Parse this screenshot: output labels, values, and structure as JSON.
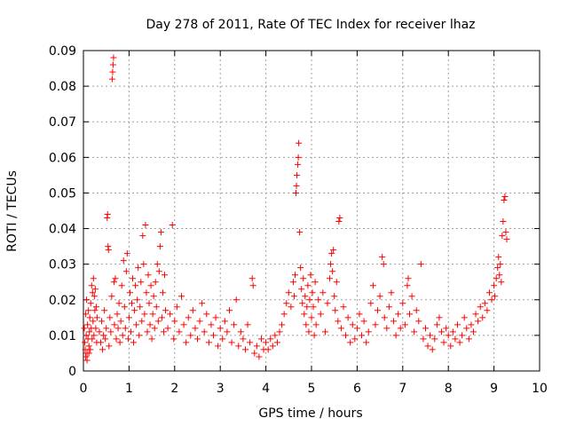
{
  "chart_data": {
    "type": "scatter",
    "title": "Day 278 of 2011, Rate Of TEC Index for receiver lhaz",
    "xlabel": "GPS time / hours",
    "ylabel": "ROTI / TECUs",
    "xlim": [
      0,
      10
    ],
    "ylim": [
      0,
      0.09
    ],
    "xticks": [
      "0",
      "1",
      "2",
      "3",
      "4",
      "5",
      "6",
      "7",
      "8",
      "9",
      "10"
    ],
    "yticks": [
      "0",
      "0.01",
      "0.02",
      "0.03",
      "0.04",
      "0.05",
      "0.06",
      "0.07",
      "0.08",
      "0.09"
    ],
    "grid": true,
    "marker": "plus",
    "color": "#ff0000",
    "series": [
      {
        "points": [
          [
            0.02,
            0.012
          ],
          [
            0.03,
            0.008
          ],
          [
            0.04,
            0.006
          ],
          [
            0.05,
            0.016
          ],
          [
            0.06,
            0.01
          ],
          [
            0.07,
            0.02
          ],
          [
            0.08,
            0.005
          ],
          [
            0.09,
            0.013
          ],
          [
            0.1,
            0.009
          ],
          [
            0.11,
            0.017
          ],
          [
            0.12,
            0.007
          ],
          [
            0.13,
            0.011
          ],
          [
            0.14,
            0.015
          ],
          [
            0.15,
            0.006
          ],
          [
            0.16,
            0.019
          ],
          [
            0.17,
            0.012
          ],
          [
            0.18,
            0.024
          ],
          [
            0.19,
            0.009
          ],
          [
            0.2,
            0.022
          ],
          [
            0.21,
            0.014
          ],
          [
            0.22,
            0.026
          ],
          [
            0.23,
            0.01
          ],
          [
            0.24,
            0.021
          ],
          [
            0.25,
            0.017
          ],
          [
            0.26,
            0.023
          ],
          [
            0.27,
            0.012
          ],
          [
            0.28,
            0.018
          ],
          [
            0.29,
            0.008
          ],
          [
            0.3,
            0.015
          ],
          [
            0.05,
            0.004
          ],
          [
            0.08,
            0.003
          ],
          [
            0.12,
            0.005
          ],
          [
            0.35,
            0.011
          ],
          [
            0.38,
            0.008
          ],
          [
            0.4,
            0.014
          ],
          [
            0.42,
            0.006
          ],
          [
            0.44,
            0.01
          ],
          [
            0.46,
            0.017
          ],
          [
            0.48,
            0.009
          ],
          [
            0.5,
            0.012
          ],
          [
            0.52,
            0.043
          ],
          [
            0.53,
            0.044
          ],
          [
            0.54,
            0.035
          ],
          [
            0.55,
            0.034
          ],
          [
            0.56,
            0.007
          ],
          [
            0.58,
            0.015
          ],
          [
            0.6,
            0.011
          ],
          [
            0.62,
            0.021
          ],
          [
            0.63,
            0.082
          ],
          [
            0.64,
            0.084
          ],
          [
            0.65,
            0.086
          ],
          [
            0.66,
            0.088
          ],
          [
            0.67,
            0.025
          ],
          [
            0.68,
            0.013
          ],
          [
            0.7,
            0.026
          ],
          [
            0.72,
            0.009
          ],
          [
            0.74,
            0.016
          ],
          [
            0.76,
            0.012
          ],
          [
            0.78,
            0.019
          ],
          [
            0.8,
            0.008
          ],
          [
            0.82,
            0.014
          ],
          [
            0.84,
            0.024
          ],
          [
            0.86,
            0.01
          ],
          [
            0.88,
            0.031
          ],
          [
            0.9,
            0.018
          ],
          [
            0.92,
            0.012
          ],
          [
            0.94,
            0.028
          ],
          [
            0.96,
            0.033
          ],
          [
            0.98,
            0.009
          ],
          [
            1.0,
            0.015
          ],
          [
            1.02,
            0.022
          ],
          [
            1.04,
            0.011
          ],
          [
            1.06,
            0.019
          ],
          [
            1.08,
            0.026
          ],
          [
            1.1,
            0.008
          ],
          [
            1.12,
            0.017
          ],
          [
            1.14,
            0.024
          ],
          [
            1.16,
            0.013
          ],
          [
            1.18,
            0.02
          ],
          [
            1.2,
            0.029
          ],
          [
            1.22,
            0.01
          ],
          [
            1.24,
            0.018
          ],
          [
            1.26,
            0.025
          ],
          [
            1.28,
            0.014
          ],
          [
            1.3,
            0.038
          ],
          [
            1.32,
            0.03
          ],
          [
            1.34,
            0.016
          ],
          [
            1.36,
            0.041
          ],
          [
            1.38,
            0.022
          ],
          [
            1.4,
            0.011
          ],
          [
            1.42,
            0.027
          ],
          [
            1.44,
            0.019
          ],
          [
            1.46,
            0.013
          ],
          [
            1.48,
            0.024
          ],
          [
            1.5,
            0.009
          ],
          [
            1.52,
            0.016
          ],
          [
            1.54,
            0.021
          ],
          [
            1.56,
            0.012
          ],
          [
            1.58,
            0.025
          ],
          [
            1.6,
            0.018
          ],
          [
            1.62,
            0.03
          ],
          [
            1.64,
            0.014
          ],
          [
            1.66,
            0.028
          ],
          [
            1.68,
            0.035
          ],
          [
            1.7,
            0.039
          ],
          [
            1.72,
            0.015
          ],
          [
            1.74,
            0.022
          ],
          [
            1.76,
            0.011
          ],
          [
            1.78,
            0.027
          ],
          [
            1.8,
            0.017
          ],
          [
            1.85,
            0.012
          ],
          [
            1.9,
            0.016
          ],
          [
            1.95,
            0.041
          ],
          [
            1.98,
            0.009
          ],
          [
            2.0,
            0.014
          ],
          [
            2.05,
            0.018
          ],
          [
            2.1,
            0.011
          ],
          [
            2.15,
            0.021
          ],
          [
            2.2,
            0.013
          ],
          [
            2.25,
            0.008
          ],
          [
            2.3,
            0.015
          ],
          [
            2.35,
            0.01
          ],
          [
            2.4,
            0.017
          ],
          [
            2.45,
            0.012
          ],
          [
            2.5,
            0.009
          ],
          [
            2.55,
            0.014
          ],
          [
            2.6,
            0.019
          ],
          [
            2.65,
            0.011
          ],
          [
            2.7,
            0.016
          ],
          [
            2.75,
            0.008
          ],
          [
            2.8,
            0.013
          ],
          [
            2.85,
            0.01
          ],
          [
            2.9,
            0.015
          ],
          [
            2.95,
            0.007
          ],
          [
            3.0,
            0.012
          ],
          [
            3.05,
            0.009
          ],
          [
            3.1,
            0.014
          ],
          [
            3.15,
            0.011
          ],
          [
            3.2,
            0.017
          ],
          [
            3.25,
            0.008
          ],
          [
            3.3,
            0.013
          ],
          [
            3.35,
            0.02
          ],
          [
            3.4,
            0.007
          ],
          [
            3.45,
            0.011
          ],
          [
            3.5,
            0.009
          ],
          [
            3.55,
            0.006
          ],
          [
            3.6,
            0.013
          ],
          [
            3.65,
            0.008
          ],
          [
            3.7,
            0.026
          ],
          [
            3.72,
            0.024
          ],
          [
            3.75,
            0.005
          ],
          [
            3.8,
            0.007
          ],
          [
            3.85,
            0.004
          ],
          [
            3.9,
            0.009
          ],
          [
            3.95,
            0.006
          ],
          [
            4.0,
            0.008
          ],
          [
            4.05,
            0.006
          ],
          [
            4.1,
            0.009
          ],
          [
            4.15,
            0.007
          ],
          [
            4.2,
            0.01
          ],
          [
            4.25,
            0.008
          ],
          [
            4.3,
            0.011
          ],
          [
            4.35,
            0.013
          ],
          [
            4.4,
            0.016
          ],
          [
            4.45,
            0.019
          ],
          [
            4.5,
            0.022
          ],
          [
            4.55,
            0.018
          ],
          [
            4.6,
            0.025
          ],
          [
            4.62,
            0.021
          ],
          [
            4.64,
            0.027
          ],
          [
            4.66,
            0.05
          ],
          [
            4.67,
            0.052
          ],
          [
            4.68,
            0.055
          ],
          [
            4.7,
            0.058
          ],
          [
            4.71,
            0.06
          ],
          [
            4.72,
            0.064
          ],
          [
            4.74,
            0.039
          ],
          [
            4.76,
            0.029
          ],
          [
            4.78,
            0.023
          ],
          [
            4.8,
            0.019
          ],
          [
            4.82,
            0.026
          ],
          [
            4.84,
            0.016
          ],
          [
            4.86,
            0.021
          ],
          [
            4.88,
            0.013
          ],
          [
            4.9,
            0.018
          ],
          [
            4.92,
            0.024
          ],
          [
            4.94,
            0.011
          ],
          [
            4.96,
            0.02
          ],
          [
            4.98,
            0.027
          ],
          [
            5.0,
            0.015
          ],
          [
            5.02,
            0.022
          ],
          [
            5.04,
            0.018
          ],
          [
            5.06,
            0.01
          ],
          [
            5.08,
            0.025
          ],
          [
            5.1,
            0.013
          ],
          [
            5.15,
            0.02
          ],
          [
            5.2,
            0.016
          ],
          [
            5.25,
            0.022
          ],
          [
            5.3,
            0.011
          ],
          [
            5.35,
            0.019
          ],
          [
            5.4,
            0.026
          ],
          [
            5.42,
            0.03
          ],
          [
            5.44,
            0.033
          ],
          [
            5.46,
            0.028
          ],
          [
            5.48,
            0.034
          ],
          [
            5.5,
            0.021
          ],
          [
            5.52,
            0.017
          ],
          [
            5.55,
            0.025
          ],
          [
            5.58,
            0.014
          ],
          [
            5.6,
            0.042
          ],
          [
            5.62,
            0.043
          ],
          [
            5.65,
            0.012
          ],
          [
            5.7,
            0.018
          ],
          [
            5.75,
            0.01
          ],
          [
            5.8,
            0.015
          ],
          [
            5.85,
            0.008
          ],
          [
            5.9,
            0.013
          ],
          [
            5.95,
            0.009
          ],
          [
            6.0,
            0.012
          ],
          [
            6.05,
            0.016
          ],
          [
            6.1,
            0.01
          ],
          [
            6.15,
            0.014
          ],
          [
            6.2,
            0.008
          ],
          [
            6.25,
            0.011
          ],
          [
            6.3,
            0.019
          ],
          [
            6.35,
            0.024
          ],
          [
            6.4,
            0.013
          ],
          [
            6.45,
            0.017
          ],
          [
            6.5,
            0.021
          ],
          [
            6.55,
            0.032
          ],
          [
            6.58,
            0.03
          ],
          [
            6.6,
            0.015
          ],
          [
            6.65,
            0.012
          ],
          [
            6.7,
            0.018
          ],
          [
            6.75,
            0.022
          ],
          [
            6.8,
            0.014
          ],
          [
            6.85,
            0.01
          ],
          [
            6.9,
            0.016
          ],
          [
            6.95,
            0.012
          ],
          [
            7.0,
            0.019
          ],
          [
            7.05,
            0.013
          ],
          [
            7.1,
            0.024
          ],
          [
            7.12,
            0.026
          ],
          [
            7.15,
            0.016
          ],
          [
            7.2,
            0.021
          ],
          [
            7.25,
            0.011
          ],
          [
            7.3,
            0.017
          ],
          [
            7.35,
            0.014
          ],
          [
            7.4,
            0.03
          ],
          [
            7.45,
            0.009
          ],
          [
            7.5,
            0.012
          ],
          [
            7.55,
            0.007
          ],
          [
            7.6,
            0.01
          ],
          [
            7.65,
            0.006
          ],
          [
            7.7,
            0.009
          ],
          [
            7.75,
            0.013
          ],
          [
            7.8,
            0.015
          ],
          [
            7.85,
            0.011
          ],
          [
            7.9,
            0.008
          ],
          [
            7.95,
            0.012
          ],
          [
            8.0,
            0.01
          ],
          [
            8.05,
            0.007
          ],
          [
            8.1,
            0.011
          ],
          [
            8.15,
            0.009
          ],
          [
            8.2,
            0.013
          ],
          [
            8.25,
            0.008
          ],
          [
            8.3,
            0.01
          ],
          [
            8.35,
            0.015
          ],
          [
            8.4,
            0.012
          ],
          [
            8.45,
            0.009
          ],
          [
            8.5,
            0.013
          ],
          [
            8.55,
            0.011
          ],
          [
            8.6,
            0.016
          ],
          [
            8.65,
            0.014
          ],
          [
            8.7,
            0.018
          ],
          [
            8.75,
            0.015
          ],
          [
            8.8,
            0.019
          ],
          [
            8.85,
            0.017
          ],
          [
            8.9,
            0.022
          ],
          [
            8.95,
            0.02
          ],
          [
            9.0,
            0.024
          ],
          [
            9.02,
            0.021
          ],
          [
            9.05,
            0.026
          ],
          [
            9.08,
            0.029
          ],
          [
            9.1,
            0.032
          ],
          [
            9.12,
            0.027
          ],
          [
            9.14,
            0.03
          ],
          [
            9.16,
            0.025
          ],
          [
            9.18,
            0.038
          ],
          [
            9.2,
            0.042
          ],
          [
            9.22,
            0.048
          ],
          [
            9.24,
            0.049
          ],
          [
            9.26,
            0.039
          ],
          [
            9.28,
            0.037
          ]
        ]
      }
    ]
  }
}
